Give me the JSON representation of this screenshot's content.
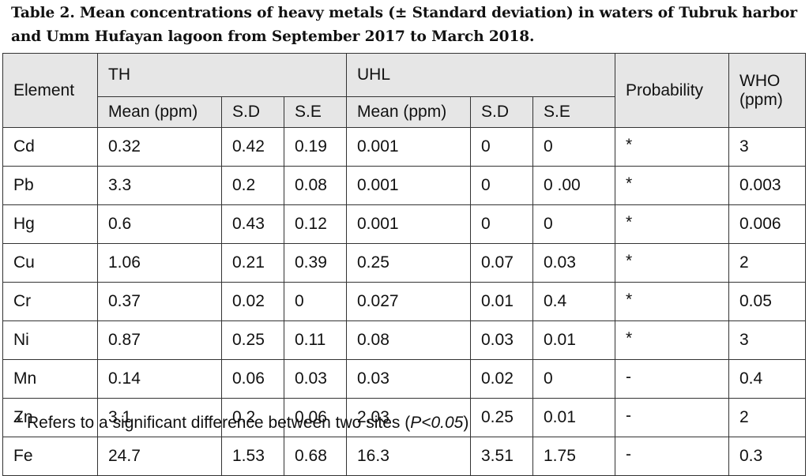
{
  "caption": "Table 2. Mean concentrations of heavy metals (± Standard deviation) in waters of Tubruk harbor and Umm Hufayan lagoon from September 2017 to March 2018.",
  "table": {
    "header": {
      "element": "Element",
      "th": "TH",
      "uhl": "UHL",
      "probability": "Probability",
      "who": "WHO (ppm)",
      "mean": "Mean (ppm)",
      "sd": "S.D",
      "se": "S.E"
    },
    "rows": [
      [
        "Cd",
        "0.32",
        "0.42",
        "0.19",
        "0.001",
        "0",
        "0",
        "*",
        "3"
      ],
      [
        "Pb",
        "3.3",
        "0.2",
        "0.08",
        "0.001",
        "0",
        "0 .00",
        "*",
        "0.003"
      ],
      [
        "Hg",
        "0.6",
        "0.43",
        "0.12",
        "0.001",
        "0",
        "0",
        "*",
        "0.006"
      ],
      [
        "Cu",
        "1.06",
        "0.21",
        "0.39",
        "0.25",
        "0.07",
        "0.03",
        "*",
        "2"
      ],
      [
        "Cr",
        "0.37",
        "0.02",
        "0",
        "0.027",
        "0.01",
        "0.4",
        "*",
        "0.05"
      ],
      [
        "Ni",
        "0.87",
        "0.25",
        "0.11",
        "0.08",
        "0.03",
        "0.01",
        "*",
        "3"
      ],
      [
        "Mn",
        "0.14",
        "0.06",
        "0.03",
        "0.03",
        "0.02",
        "0",
        "-",
        "0.4"
      ],
      [
        "Zn",
        "3.1",
        "0.2",
        "0.06",
        "2.03",
        "0.25",
        "0.01",
        "-",
        "2"
      ],
      [
        "Fe",
        "24.7",
        "1.53",
        "0.68",
        "16.3",
        "3.51",
        "1.75",
        "-",
        "0.3"
      ]
    ]
  },
  "footnote": {
    "text": "* Refers to a significant difference between two sites (",
    "pvalue": "P<0.05",
    "close": ")"
  }
}
